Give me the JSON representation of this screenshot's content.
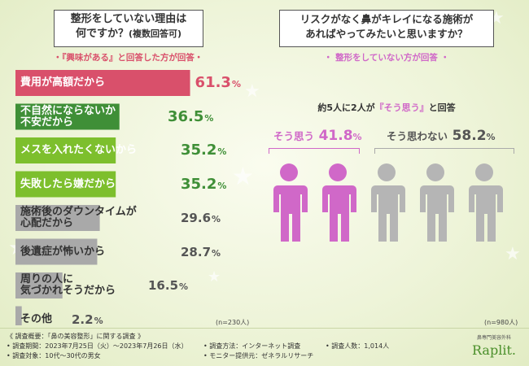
{
  "left": {
    "title_main": "整形をしていない理由は",
    "title_line2": "何ですか？",
    "title_note": "(複数回答可)",
    "subtitle": "・『興味がある』と回答した方が回答・",
    "n_label": "(n=230人)"
  },
  "right": {
    "title_line1": "リスクがなく鼻がキレイになる施術が",
    "title_line2": "あればやってみたいと思いますか？",
    "subtitle": "・ 整形をしていない方が回答 ・",
    "summary_pre": "約5人に2人が",
    "summary_em": "『そう思う』",
    "summary_post": "と回答",
    "yes_label": "そう思う",
    "yes_value": "41.8",
    "no_label": "そう思わない",
    "no_value": "58.2",
    "n_label": "(n=980人)"
  },
  "footer": {
    "line1": "《 調査概要：「鼻の美容整形」に関する調査 》",
    "period": "• 調査期間：2023年7月25日（火）〜2023年7月26日（水）",
    "target": "• 調査対象：10代〜30代の男女",
    "method": "• 調査方法：インターネット調査",
    "provider": "• モニター提供元：ゼネラルリサーチ",
    "count": "• 調査人数：1,014人",
    "brand_small": "鼻専門美容外科",
    "brand": "Raplit."
  },
  "colors": {
    "bar_top": "#d9506b",
    "bar_dark_green": "#3f8f37",
    "bar_green": "#7dbf2d",
    "bar_gray": "#a9a9a9",
    "value_top": "#d9506b",
    "value_green": "#3f8f37",
    "value_gray": "#555555",
    "yes_color": "#d068c8",
    "no_color": "#b5b5b5",
    "brand": "#4a8f2a"
  },
  "chart_data": [
    {
      "type": "bar",
      "orientation": "horizontal",
      "title": "整形をしていない理由は何ですか？(複数回答可)",
      "categories": [
        "費用が高額だから",
        "不自然にならないか不安だから",
        "メスを入れたくないから",
        "失敗したら嫌だから",
        "施術後のダウンタイムが心配だから",
        "後遺症が怖いから",
        "周りの人に気づかれそうだから",
        "その他"
      ],
      "values": [
        61.3,
        36.5,
        35.2,
        35.2,
        29.6,
        28.7,
        16.5,
        2.2
      ],
      "unit": "%",
      "xlim": [
        0,
        100
      ]
    },
    {
      "type": "pie",
      "title": "リスクがなく鼻がキレイになる施術があればやってみたいと思いますか？",
      "categories": [
        "そう思う",
        "そう思わない"
      ],
      "values": [
        41.8,
        58.2
      ],
      "unit": "%"
    }
  ]
}
